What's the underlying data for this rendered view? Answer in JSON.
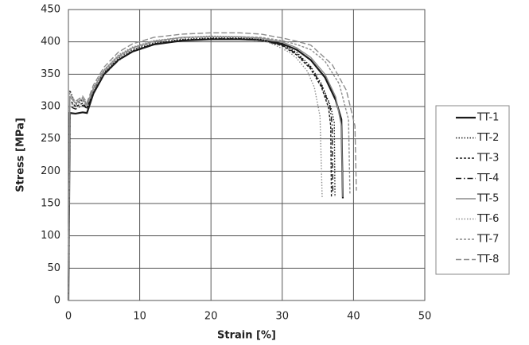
{
  "chart_data": {
    "type": "line",
    "x_label": "Strain [%]",
    "y_label": "Stress [MPa]",
    "xlim": [
      0,
      50
    ],
    "xticks": [
      0,
      10,
      20,
      30,
      40,
      50
    ],
    "ylim": [
      0,
      450
    ],
    "yticks": [
      0,
      50,
      100,
      150,
      200,
      250,
      300,
      350,
      400,
      450
    ],
    "grid": true,
    "legend": "right",
    "series": [
      {
        "name": "TT-1",
        "color": "#1a1a1a",
        "dash": "solid",
        "x": [
          0,
          0.2,
          1,
          2,
          2.6,
          3.5,
          5,
          7,
          9,
          12,
          16,
          20,
          24,
          27,
          30,
          32,
          34,
          36,
          37.5,
          38.3,
          38.5
        ],
        "values": [
          0,
          290,
          289,
          291,
          290,
          320,
          350,
          372,
          385,
          396,
          402,
          404,
          404,
          403,
          397,
          388,
          372,
          345,
          310,
          280,
          158
        ]
      },
      {
        "name": "TT-2",
        "color": "#1a1a1a",
        "dash": "dotted",
        "x": [
          0,
          0.2,
          1,
          2,
          2.6,
          3.5,
          5,
          7,
          9,
          12,
          16,
          20,
          24,
          27,
          30,
          32,
          34,
          35.5,
          36.8,
          37.3,
          37.4
        ],
        "values": [
          0,
          325,
          304,
          310,
          302,
          326,
          353,
          375,
          388,
          398,
          404,
          406,
          406,
          404,
          396,
          384,
          362,
          335,
          300,
          275,
          160
        ]
      },
      {
        "name": "TT-3",
        "color": "#1a1a1a",
        "dash": "dashed",
        "x": [
          0,
          0.2,
          1,
          2,
          2.6,
          3.5,
          5,
          7,
          9,
          12,
          16,
          20,
          24,
          27,
          30,
          32,
          34,
          35.5,
          36.5,
          36.8,
          36.9
        ],
        "values": [
          0,
          310,
          300,
          305,
          298,
          322,
          350,
          372,
          386,
          397,
          403,
          405,
          405,
          403,
          394,
          380,
          358,
          330,
          298,
          270,
          160
        ]
      },
      {
        "name": "TT-4",
        "color": "#1a1a1a",
        "dash": "dashdot",
        "x": [
          0,
          0.2,
          1,
          2,
          2.6,
          3.5,
          5,
          7,
          9,
          12,
          16,
          20,
          24,
          27,
          30,
          32,
          34,
          35.5,
          36.7,
          37.0,
          37.1
        ],
        "values": [
          0,
          300,
          296,
          302,
          297,
          321,
          349,
          371,
          385,
          396,
          402,
          404,
          404,
          402,
          395,
          382,
          360,
          333,
          300,
          272,
          165
        ]
      },
      {
        "name": "TT-5",
        "color": "#8c8c8c",
        "dash": "solid",
        "x": [
          0,
          0.2,
          1,
          2,
          2.6,
          3.5,
          5,
          7,
          9,
          12,
          16,
          20,
          24,
          27,
          30,
          32,
          34,
          36,
          37.5,
          38.3,
          38.5
        ],
        "values": [
          0,
          315,
          305,
          312,
          303,
          328,
          356,
          378,
          391,
          401,
          407,
          408,
          408,
          406,
          400,
          391,
          376,
          350,
          315,
          270,
          160
        ]
      },
      {
        "name": "TT-6",
        "color": "#8c8c8c",
        "dash": "dotted",
        "x": [
          0,
          0.2,
          1,
          2,
          2.6,
          3.5,
          5,
          7,
          9,
          12,
          16,
          20,
          24,
          27,
          29,
          31,
          32,
          33.5,
          34.5,
          35.3,
          35.6
        ],
        "values": [
          0,
          320,
          306,
          314,
          304,
          330,
          357,
          380,
          392,
          402,
          407,
          409,
          408,
          404,
          395,
          384,
          375,
          355,
          330,
          285,
          160
        ]
      },
      {
        "name": "TT-7",
        "color": "#8c8c8c",
        "dash": "dashed",
        "x": [
          0,
          0.2,
          1,
          2,
          2.6,
          3.5,
          5,
          7,
          9,
          12,
          16,
          20,
          24,
          27,
          30,
          32,
          34,
          36,
          38,
          39.3,
          39.5
        ],
        "values": [
          0,
          305,
          302,
          309,
          301,
          325,
          353,
          376,
          389,
          400,
          406,
          408,
          408,
          407,
          402,
          396,
          388,
          370,
          335,
          280,
          165
        ]
      },
      {
        "name": "TT-8",
        "color": "#8c8c8c",
        "dash": "longdash",
        "x": [
          0,
          0.2,
          1,
          2,
          2.6,
          3.5,
          5,
          7,
          9,
          12,
          16,
          20,
          24,
          27,
          30,
          32,
          34,
          37,
          39,
          40.2,
          40.4
        ],
        "values": [
          0,
          318,
          308,
          316,
          306,
          333,
          361,
          384,
          397,
          407,
          412,
          414,
          414,
          412,
          406,
          401,
          395,
          365,
          325,
          270,
          170
        ]
      }
    ]
  }
}
